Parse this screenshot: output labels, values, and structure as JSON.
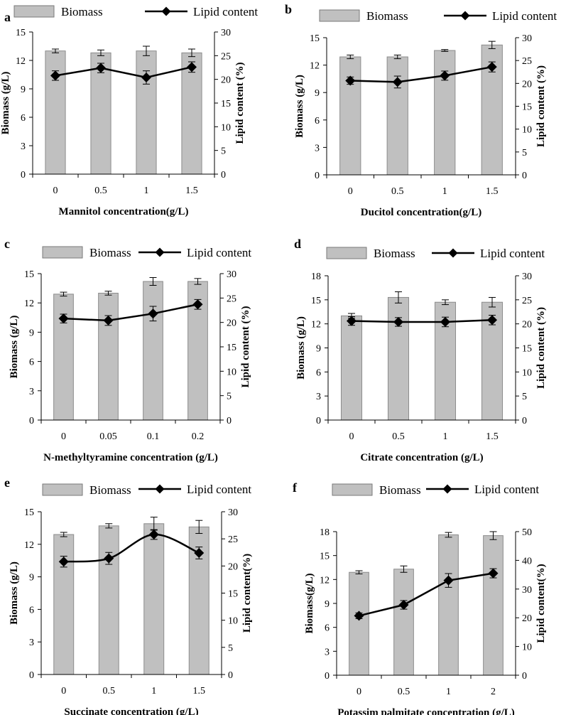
{
  "chart_data": [
    {
      "type": "bar",
      "panel_label": "a",
      "categories": [
        "0",
        "0.5",
        "1",
        "1.5"
      ],
      "xlabel": "Mannitol concentration(g/L)",
      "ylabel": "Biomass (g/L)",
      "ylabel2": "Lipid content (%)",
      "ylim": [
        0,
        15
      ],
      "yticks": [
        "0",
        "3",
        "6",
        "9",
        "12",
        "15"
      ],
      "ylim2": [
        0,
        30
      ],
      "yticks2": [
        "0",
        "5",
        "10",
        "15",
        "20",
        "25",
        "30"
      ],
      "legend": {
        "bar": "Biomass",
        "line": "Lipid content"
      },
      "series": [
        {
          "name": "Biomass",
          "axis": "left",
          "values": [
            13.0,
            12.8,
            13.0,
            12.8
          ],
          "errors": [
            0.2,
            0.3,
            0.5,
            0.4
          ]
        },
        {
          "name": "Lipid content",
          "axis": "right",
          "values": [
            20.8,
            22.4,
            20.4,
            22.6
          ],
          "errors": [
            1.0,
            1.0,
            1.4,
            1.1
          ]
        }
      ]
    },
    {
      "type": "bar",
      "panel_label": "b",
      "categories": [
        "0",
        "0.5",
        "1",
        "1.5"
      ],
      "xlabel": "Ducitol concentration(g/L)",
      "ylabel": "Biomass (g/L)",
      "ylabel2": "Lipid content (%)",
      "ylim": [
        0,
        15
      ],
      "yticks": [
        "0",
        "3",
        "6",
        "9",
        "12",
        "15"
      ],
      "ylim2": [
        0,
        30
      ],
      "yticks2": [
        "0",
        "5",
        "10",
        "15",
        "20",
        "25",
        "30"
      ],
      "legend": {
        "bar": "Biomass",
        "line": "Lipid content"
      },
      "series": [
        {
          "name": "Biomass",
          "axis": "left",
          "values": [
            12.9,
            12.9,
            13.6,
            14.2
          ],
          "errors": [
            0.2,
            0.2,
            0.1,
            0.4
          ]
        },
        {
          "name": "Lipid content",
          "axis": "right",
          "values": [
            20.6,
            20.3,
            21.7,
            23.6
          ],
          "errors": [
            0.8,
            1.3,
            1.0,
            1.1
          ]
        }
      ]
    },
    {
      "type": "bar",
      "panel_label": "c",
      "categories": [
        "0",
        "0.05",
        "0.1",
        "0.2"
      ],
      "xlabel": "N-methyltyramine concentration (g/L)",
      "ylabel": "Biomass (g/L)",
      "ylabel2": "Lipid content (%)",
      "ylim": [
        0,
        15
      ],
      "yticks": [
        "0",
        "3",
        "6",
        "9",
        "12",
        "15"
      ],
      "ylim2": [
        0,
        30
      ],
      "yticks2": [
        "0",
        "5",
        "10",
        "15",
        "20",
        "25",
        "30"
      ],
      "legend": {
        "bar": "Biomass",
        "line": "Lipid content"
      },
      "series": [
        {
          "name": "Biomass",
          "axis": "left",
          "values": [
            12.9,
            13.0,
            14.2,
            14.2
          ],
          "errors": [
            0.2,
            0.2,
            0.4,
            0.3
          ]
        },
        {
          "name": "Lipid content",
          "axis": "right",
          "values": [
            20.8,
            20.4,
            21.8,
            23.7
          ],
          "errors": [
            0.9,
            1.0,
            1.5,
            1.0
          ]
        }
      ]
    },
    {
      "type": "bar",
      "panel_label": "d",
      "categories": [
        "0",
        "0.5",
        "1",
        "1.5"
      ],
      "xlabel": "Citrate concentration (g/L)",
      "ylabel": "Biomass (g/L)",
      "ylabel2": "Lipid content (%)",
      "ylim": [
        0,
        18
      ],
      "yticks": [
        "0",
        "3",
        "6",
        "9",
        "12",
        "15",
        "18"
      ],
      "ylim2": [
        0,
        30
      ],
      "yticks2": [
        "0",
        "5",
        "10",
        "15",
        "20",
        "25",
        "30"
      ],
      "legend": {
        "bar": "Biomass",
        "line": "Lipid content"
      },
      "series": [
        {
          "name": "Biomass",
          "axis": "left",
          "values": [
            13.0,
            15.3,
            14.7,
            14.7
          ],
          "errors": [
            0.3,
            0.7,
            0.3,
            0.6
          ]
        },
        {
          "name": "Lipid content",
          "axis": "right",
          "values": [
            20.6,
            20.4,
            20.4,
            20.8
          ],
          "errors": [
            0.9,
            0.9,
            1.0,
            1.0
          ]
        }
      ]
    },
    {
      "type": "bar",
      "panel_label": "e",
      "categories": [
        "0",
        "0.5",
        "1",
        "1.5"
      ],
      "xlabel": "Succinate concentration (g/L)",
      "ylabel": "Biomass (g/L)",
      "ylabel2": "Lipid content(%)",
      "ylim": [
        0,
        15
      ],
      "yticks": [
        "0",
        "3",
        "6",
        "9",
        "12",
        "15"
      ],
      "ylim2": [
        0,
        30
      ],
      "yticks2": [
        "0",
        "5",
        "10",
        "15",
        "20",
        "25",
        "30"
      ],
      "legend": {
        "bar": "Biomass",
        "line": "Lipid content"
      },
      "line_style": "smooth",
      "series": [
        {
          "name": "Biomass",
          "axis": "left",
          "values": [
            12.9,
            13.7,
            13.9,
            13.6
          ],
          "errors": [
            0.2,
            0.2,
            0.6,
            0.6
          ]
        },
        {
          "name": "Lipid content",
          "axis": "right",
          "values": [
            20.8,
            21.4,
            25.8,
            22.4
          ],
          "errors": [
            1.0,
            1.1,
            0.9,
            1.1
          ]
        }
      ]
    },
    {
      "type": "bar",
      "panel_label": "f",
      "categories": [
        "0",
        "0.5",
        "1",
        "2"
      ],
      "xlabel": "Potassim palmitate concentration (g/L)",
      "ylabel": "Biomass(g/L)",
      "ylabel2": "Lipid content(%)",
      "ylim": [
        0,
        18
      ],
      "yticks": [
        "0",
        "3",
        "6",
        "9",
        "12",
        "15",
        "18"
      ],
      "ylim2": [
        0,
        50
      ],
      "yticks2": [
        "0",
        "10",
        "20",
        "30",
        "40",
        "50"
      ],
      "legend": {
        "bar": "Biomass",
        "line": "Lipid content"
      },
      "series": [
        {
          "name": "Biomass",
          "axis": "left",
          "values": [
            12.9,
            13.3,
            17.6,
            17.5
          ],
          "errors": [
            0.2,
            0.4,
            0.3,
            0.5
          ]
        },
        {
          "name": "Lipid content",
          "axis": "right",
          "values": [
            20.7,
            24.5,
            33.0,
            35.5
          ],
          "errors": [
            1.0,
            1.5,
            2.4,
            1.6
          ]
        }
      ]
    }
  ]
}
